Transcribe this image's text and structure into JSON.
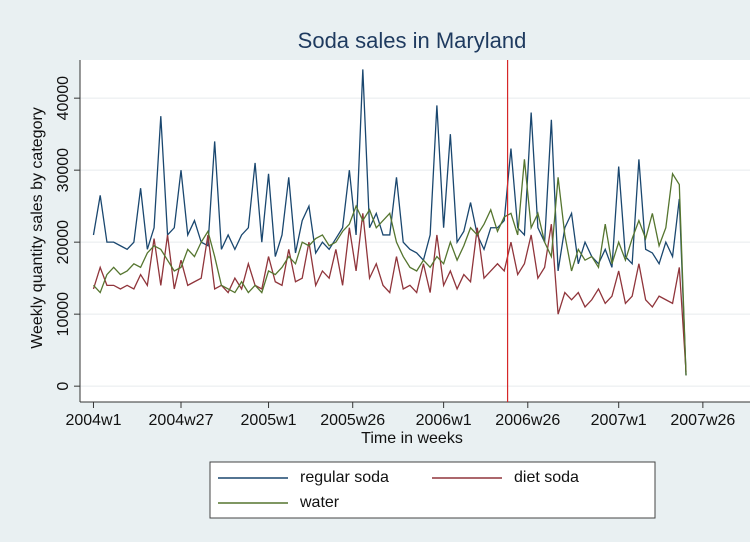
{
  "chart_data": {
    "type": "line",
    "title": "Soda sales in Maryland",
    "x_label": "Time in weeks",
    "y_label": "Weekly quantity sales by category",
    "x": [
      2288,
      2290,
      2292,
      2294,
      2296,
      2298,
      2300,
      2302,
      2304,
      2306,
      2308,
      2310,
      2312,
      2314,
      2316,
      2318,
      2320,
      2322,
      2324,
      2326,
      2328,
      2330,
      2332,
      2334,
      2336,
      2338,
      2340,
      2342,
      2344,
      2346,
      2348,
      2350,
      2352,
      2354,
      2356,
      2358,
      2360,
      2362,
      2364,
      2366,
      2368,
      2370,
      2372,
      2374,
      2376,
      2378,
      2380,
      2382,
      2384,
      2386,
      2388,
      2390,
      2392,
      2394,
      2396,
      2398,
      2400,
      2402,
      2404,
      2406,
      2408,
      2410,
      2412,
      2414,
      2416,
      2418,
      2420,
      2422,
      2424,
      2426,
      2428,
      2430,
      2432,
      2434,
      2436,
      2438,
      2440,
      2442,
      2444,
      2446,
      2448,
      2450,
      2452,
      2454,
      2456,
      2458,
      2460,
      2462,
      2464
    ],
    "series": [
      {
        "name": "regular soda",
        "color": "#1a476f",
        "values": [
          21000,
          26500,
          20000,
          20000,
          19500,
          19000,
          20000,
          27500,
          19000,
          22000,
          37500,
          21000,
          22000,
          30000,
          21000,
          23000,
          20000,
          19500,
          34000,
          19000,
          21000,
          19000,
          21000,
          22000,
          31000,
          20000,
          29500,
          18000,
          21000,
          29000,
          18500,
          23000,
          25000,
          18500,
          20000,
          19000,
          20500,
          22000,
          30000,
          21000,
          44000,
          22000,
          24000,
          21000,
          21000,
          29000,
          20000,
          19000,
          18500,
          17500,
          21000,
          39000,
          22000,
          35000,
          20000,
          21500,
          25500,
          21000,
          19000,
          22000,
          22000,
          23000,
          33000,
          22000,
          21000,
          38000,
          22000,
          20000,
          37000,
          16000,
          22000,
          24000,
          17000,
          20000,
          18000,
          17000,
          19000,
          16500,
          30500,
          18000,
          17000,
          31500,
          19000,
          18500,
          17000,
          20000,
          18000,
          26000,
          1500
        ]
      },
      {
        "name": "diet soda",
        "color": "#90353b",
        "values": [
          13500,
          16500,
          14000,
          14000,
          13500,
          14000,
          13500,
          15500,
          14000,
          20500,
          14000,
          21000,
          13500,
          17500,
          14000,
          14500,
          15000,
          21000,
          13500,
          14000,
          13000,
          15000,
          13500,
          17000,
          14000,
          13500,
          18000,
          14500,
          14000,
          19000,
          14500,
          15000,
          20000,
          14000,
          16000,
          15000,
          19000,
          14000,
          22000,
          16000,
          24000,
          15000,
          17000,
          14000,
          13000,
          18000,
          13500,
          14000,
          13000,
          17000,
          13000,
          21000,
          14000,
          16000,
          13500,
          15500,
          14500,
          22000,
          15000,
          16000,
          17000,
          16000,
          20000,
          15500,
          17000,
          21000,
          15000,
          16500,
          22500,
          10000,
          13000,
          12000,
          13000,
          11000,
          12000,
          13500,
          11500,
          12500,
          16000,
          11500,
          12500,
          17000,
          12000,
          11000,
          12500,
          12000,
          11500,
          16500,
          2000
        ]
      },
      {
        "name": "water",
        "color": "#55752f",
        "values": [
          14000,
          13000,
          15500,
          16500,
          15500,
          16000,
          17000,
          16500,
          18500,
          19500,
          19000,
          17500,
          16000,
          16500,
          19000,
          18000,
          20000,
          21500,
          18000,
          14000,
          13500,
          13000,
          14500,
          13000,
          14000,
          13000,
          16000,
          15500,
          16500,
          18000,
          17000,
          20000,
          19500,
          20500,
          21000,
          19500,
          20000,
          21500,
          22500,
          25000,
          23000,
          24500,
          22000,
          23000,
          24000,
          20000,
          18000,
          16500,
          16000,
          17500,
          16500,
          18000,
          17000,
          20000,
          17500,
          19500,
          22000,
          21000,
          22500,
          24500,
          21500,
          23500,
          24000,
          21000,
          31500,
          22000,
          24000,
          20000,
          18000,
          29000,
          21000,
          16000,
          19000,
          17500,
          18000,
          16500,
          22500,
          17000,
          20000,
          17500,
          20500,
          23000,
          20500,
          24000,
          19500,
          22000,
          29500,
          28000,
          1500
        ]
      }
    ],
    "xlim": [
      2284,
      2483
    ],
    "xticks": [
      {
        "value": 2288,
        "label": "2004w1"
      },
      {
        "value": 2314,
        "label": "2004w27"
      },
      {
        "value": 2340,
        "label": "2005w1"
      },
      {
        "value": 2365,
        "label": "2005w26"
      },
      {
        "value": 2392,
        "label": "2006w1"
      },
      {
        "value": 2417,
        "label": "2006w26"
      },
      {
        "value": 2444,
        "label": "2007w1"
      },
      {
        "value": 2469,
        "label": "2007w26"
      }
    ],
    "ylim": [
      -2200,
      45300
    ],
    "yticks": [
      0,
      10000,
      20000,
      30000,
      40000
    ],
    "grid": true,
    "xline": 2411,
    "xline_color": "#d62728",
    "legend": "bottom"
  }
}
